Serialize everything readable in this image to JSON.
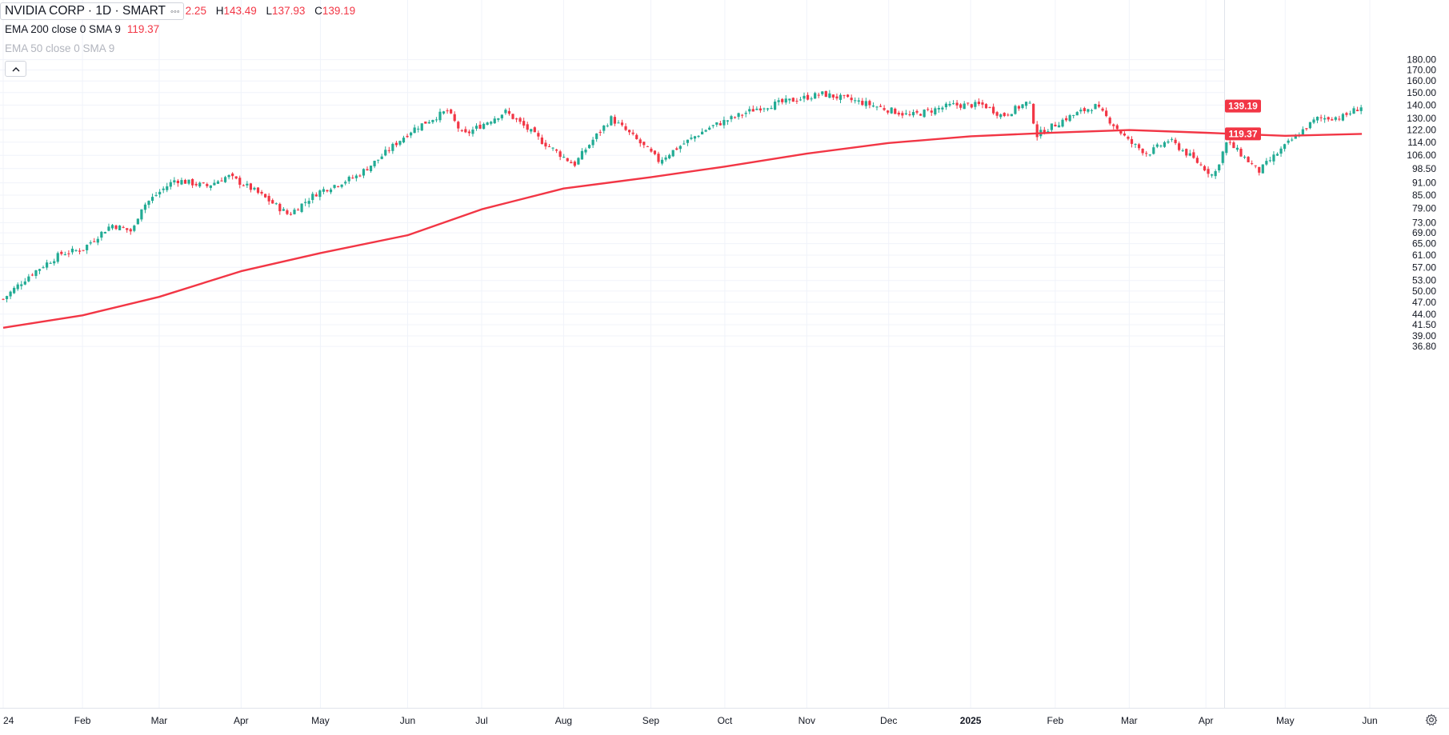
{
  "legend": {
    "title": "NVIDIA CORP · 1D · SMART",
    "more_icon": "more-dots-icon",
    "ohlc": [
      {
        "key": "",
        "value": "2.25"
      },
      {
        "key": "H",
        "value": "143.49"
      },
      {
        "key": "L",
        "value": "137.93"
      },
      {
        "key": "C",
        "value": "139.19"
      }
    ],
    "ema200": {
      "name": "EMA 200 close 0 SMA 9",
      "value": "119.37"
    },
    "ema50": {
      "name": "EMA 50 close 0 SMA 9"
    },
    "collapse_icon": "chevron-up-icon"
  },
  "colors": {
    "up": "#22ab94",
    "down": "#f23645",
    "ema200": "#f23645",
    "grid": "#f0f3fa",
    "axis_text": "#131722"
  },
  "settings_icon": "gear-icon",
  "chart_data": {
    "type": "candlestick",
    "y_scale": "log",
    "y_ticks": [
      "36.80",
      "39.00",
      "41.50",
      "44.00",
      "47.00",
      "50.00",
      "53.00",
      "57.00",
      "61.00",
      "65.00",
      "69.00",
      "73.00",
      "79.00",
      "85.00",
      "91.00",
      "98.50",
      "106.00",
      "114.00",
      "122.00",
      "130.00",
      "140.00",
      "150.00",
      "160.00",
      "170.00",
      "180.00"
    ],
    "x_ticks": [
      {
        "label": "24",
        "date": "2024-01-02"
      },
      {
        "label": "Feb",
        "date": "2024-02-01"
      },
      {
        "label": "Mar",
        "date": "2024-03-01"
      },
      {
        "label": "Apr",
        "date": "2024-04-01"
      },
      {
        "label": "May",
        "date": "2024-05-01"
      },
      {
        "label": "Jun",
        "date": "2024-06-03"
      },
      {
        "label": "Jul",
        "date": "2024-07-01"
      },
      {
        "label": "Aug",
        "date": "2024-08-01"
      },
      {
        "label": "Sep",
        "date": "2024-09-03"
      },
      {
        "label": "Oct",
        "date": "2024-10-01"
      },
      {
        "label": "Nov",
        "date": "2024-11-01"
      },
      {
        "label": "Dec",
        "date": "2024-12-02"
      },
      {
        "label": "2025",
        "date": "2025-01-02",
        "bold": true
      },
      {
        "label": "Feb",
        "date": "2025-02-03"
      },
      {
        "label": "Mar",
        "date": "2025-03-03"
      },
      {
        "label": "Apr",
        "date": "2025-04-01"
      },
      {
        "label": "May",
        "date": "2025-05-01"
      },
      {
        "label": "Jun",
        "date": "2025-06-02"
      }
    ],
    "price_path": [
      [
        "2024-01-02",
        47.8
      ],
      [
        "2024-01-12",
        54.6
      ],
      [
        "2024-01-24",
        61.5
      ],
      [
        "2024-02-01",
        63.0
      ],
      [
        "2024-02-12",
        72.2
      ],
      [
        "2024-02-20",
        69.4
      ],
      [
        "2024-02-23",
        79.1
      ],
      [
        "2024-03-07",
        92.6
      ],
      [
        "2024-03-19",
        89.3
      ],
      [
        "2024-03-27",
        94.5
      ],
      [
        "2024-04-05",
        88.0
      ],
      [
        "2024-04-19",
        76.2
      ],
      [
        "2024-04-30",
        86.4
      ],
      [
        "2024-05-15",
        94.6
      ],
      [
        "2024-05-23",
        103.8
      ],
      [
        "2024-06-05",
        122.4
      ],
      [
        "2024-06-18",
        135.6
      ],
      [
        "2024-06-24",
        118.1
      ],
      [
        "2024-07-10",
        134.9
      ],
      [
        "2024-07-24",
        114.2
      ],
      [
        "2024-08-05",
        100.5
      ],
      [
        "2024-08-19",
        130.0
      ],
      [
        "2024-09-06",
        102.8
      ],
      [
        "2024-09-25",
        123.5
      ],
      [
        "2024-10-14",
        138.1
      ],
      [
        "2024-11-07",
        148.9
      ],
      [
        "2024-11-22",
        141.9
      ],
      [
        "2024-12-10",
        132.0
      ],
      [
        "2024-12-26",
        139.9
      ],
      [
        "2025-01-07",
        140.1
      ],
      [
        "2025-01-14",
        131.8
      ],
      [
        "2025-01-24",
        142.6
      ],
      [
        "2025-01-27",
        118.4
      ],
      [
        "2025-02-07",
        130.0
      ],
      [
        "2025-02-18",
        139.4
      ],
      [
        "2025-03-03",
        114.1
      ],
      [
        "2025-03-10",
        106.9
      ],
      [
        "2025-03-18",
        115.4
      ],
      [
        "2025-04-04",
        94.3
      ],
      [
        "2025-04-09",
        114.3
      ],
      [
        "2025-04-21",
        96.9
      ],
      [
        "2025-05-01",
        111.6
      ],
      [
        "2025-05-13",
        129.9
      ],
      [
        "2025-05-23",
        131.3
      ],
      [
        "2025-05-30",
        139.19
      ]
    ],
    "ema200": [
      [
        "2024-01-02",
        40.8
      ],
      [
        "2024-02-01",
        43.7
      ],
      [
        "2024-03-01",
        48.4
      ],
      [
        "2024-04-01",
        55.8
      ],
      [
        "2024-05-01",
        61.7
      ],
      [
        "2024-06-03",
        68.1
      ],
      [
        "2024-07-01",
        78.6
      ],
      [
        "2024-08-01",
        88.2
      ],
      [
        "2024-09-03",
        93.9
      ],
      [
        "2024-10-01",
        99.6
      ],
      [
        "2024-11-01",
        107.0
      ],
      [
        "2024-12-02",
        113.5
      ],
      [
        "2025-01-02",
        117.8
      ],
      [
        "2025-02-03",
        120.2
      ],
      [
        "2025-03-03",
        121.9
      ],
      [
        "2025-04-01",
        120.1
      ],
      [
        "2025-05-01",
        118.1
      ],
      [
        "2025-05-30",
        119.37
      ]
    ],
    "last_price": 139.19,
    "last_ema200": 119.37,
    "last_price_label": "139.19",
    "ema200_label": "119.37"
  }
}
